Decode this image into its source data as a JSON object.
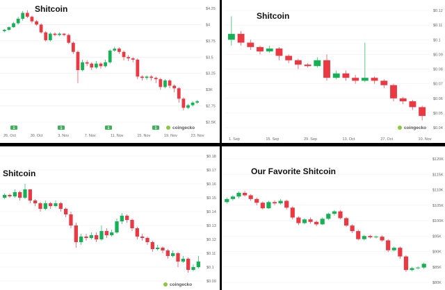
{
  "colors": {
    "up": "#16b157",
    "down": "#ea3943",
    "grid": "#ececec",
    "axis_text": "#666666",
    "watermark_icon": "#8dc63f",
    "event_badge": "#3fb15c"
  },
  "watermark": "coingecko",
  "chart_data": [
    {
      "type": "candlestick",
      "title": "Shitcoin",
      "y_ticks": [
        "$4.25",
        "$4",
        "$3.75",
        "$3.5",
        "$3.25",
        "$3K",
        "$2.75",
        "$2.5K"
      ],
      "ylim": [
        2.5,
        4.25
      ],
      "x_ticks": [
        "26. Oct",
        "30. Oct",
        "3. Nov",
        "7. Nov",
        "11. Nov",
        "15. Nov",
        "19. Nov",
        "23. Nov"
      ],
      "event_badges": [
        "1",
        "1",
        "1",
        "1"
      ],
      "candles": [
        [
          3.9,
          3.92,
          3.88,
          3.93
        ],
        [
          3.92,
          3.96,
          3.9,
          3.97
        ],
        [
          3.96,
          4.02,
          3.95,
          4.04
        ],
        [
          4.02,
          4.09,
          4.0,
          4.12
        ],
        [
          4.09,
          4.18,
          4.06,
          4.21
        ],
        [
          4.18,
          4.12,
          4.1,
          4.22
        ],
        [
          4.12,
          4.05,
          4.02,
          4.14
        ],
        [
          4.05,
          4.0,
          3.98,
          4.07
        ],
        [
          4.0,
          3.88,
          3.86,
          4.02
        ],
        [
          3.88,
          3.76,
          3.74,
          3.9
        ],
        [
          3.76,
          3.86,
          3.74,
          3.88
        ],
        [
          3.86,
          3.84,
          3.82,
          3.88
        ],
        [
          3.84,
          3.86,
          3.82,
          3.88
        ],
        [
          3.86,
          3.84,
          3.82,
          3.87
        ],
        [
          3.84,
          3.72,
          3.7,
          3.86
        ],
        [
          3.72,
          3.58,
          3.55,
          3.74
        ],
        [
          3.58,
          3.3,
          3.1,
          3.6
        ],
        [
          3.3,
          3.42,
          3.28,
          3.46
        ],
        [
          3.42,
          3.4,
          3.36,
          3.45
        ],
        [
          3.4,
          3.34,
          3.3,
          3.42
        ],
        [
          3.34,
          3.4,
          3.32,
          3.44
        ],
        [
          3.4,
          3.36,
          3.32,
          3.42
        ],
        [
          3.36,
          3.42,
          3.34,
          3.46
        ],
        [
          3.42,
          3.6,
          3.4,
          3.62
        ],
        [
          3.6,
          3.63,
          3.58,
          3.66
        ],
        [
          3.63,
          3.58,
          3.55,
          3.65
        ],
        [
          3.58,
          3.5,
          3.45,
          3.6
        ],
        [
          3.5,
          3.48,
          3.44,
          3.53
        ],
        [
          3.48,
          3.46,
          3.42,
          3.5
        ],
        [
          3.46,
          3.2,
          3.16,
          3.48
        ],
        [
          3.2,
          3.18,
          3.14,
          3.22
        ],
        [
          3.18,
          3.2,
          3.15,
          3.22
        ],
        [
          3.2,
          3.18,
          3.14,
          3.22
        ],
        [
          3.18,
          3.16,
          3.1,
          3.2
        ],
        [
          3.16,
          3.04,
          3.0,
          3.18
        ],
        [
          3.04,
          3.14,
          3.02,
          3.16
        ],
        [
          3.14,
          3.06,
          3.02,
          3.16
        ],
        [
          3.06,
          3.02,
          2.96,
          3.08
        ],
        [
          3.02,
          2.86,
          2.8,
          3.04
        ],
        [
          2.86,
          2.72,
          2.68,
          2.88
        ],
        [
          2.72,
          2.76,
          2.7,
          2.78
        ],
        [
          2.76,
          2.8,
          2.74,
          2.82
        ],
        [
          2.8,
          2.82,
          2.78,
          2.84
        ]
      ]
    },
    {
      "type": "candlestick",
      "title": "Shitcoin",
      "y_ticks": [
        "$0.12",
        "$0.11",
        "$0.1",
        "$0.09",
        "$0.08",
        "$0.07",
        "$0.06",
        "$0.05",
        "$0.04"
      ],
      "ylim": [
        0.04,
        0.12
      ],
      "x_ticks": [
        "1. Sep",
        "15. Sep",
        "29. Sep",
        "13. Oct",
        "27. Oct",
        "10. Nov"
      ],
      "candles": [
        [
          0.1,
          0.104,
          0.096,
          0.116
        ],
        [
          0.104,
          0.098,
          0.096,
          0.106
        ],
        [
          0.098,
          0.095,
          0.093,
          0.1
        ],
        [
          0.095,
          0.092,
          0.09,
          0.096
        ],
        [
          0.092,
          0.094,
          0.091,
          0.096
        ],
        [
          0.094,
          0.089,
          0.086,
          0.095
        ],
        [
          0.089,
          0.086,
          0.084,
          0.09
        ],
        [
          0.086,
          0.083,
          0.08,
          0.087
        ],
        [
          0.083,
          0.082,
          0.081,
          0.084
        ],
        [
          0.082,
          0.086,
          0.081,
          0.088
        ],
        [
          0.086,
          0.074,
          0.072,
          0.09
        ],
        [
          0.074,
          0.077,
          0.073,
          0.079
        ],
        [
          0.077,
          0.074,
          0.072,
          0.079
        ],
        [
          0.074,
          0.072,
          0.07,
          0.076
        ],
        [
          0.072,
          0.074,
          0.071,
          0.098
        ],
        [
          0.074,
          0.072,
          0.07,
          0.075
        ],
        [
          0.072,
          0.069,
          0.067,
          0.073
        ],
        [
          0.069,
          0.06,
          0.058,
          0.07
        ],
        [
          0.06,
          0.058,
          0.056,
          0.061
        ],
        [
          0.058,
          0.054,
          0.052,
          0.059
        ],
        [
          0.054,
          0.048,
          0.045,
          0.055
        ]
      ]
    },
    {
      "type": "candlestick",
      "title": "Shitcoin",
      "y_ticks": [
        "$0.18",
        "$0.17",
        "$0.16",
        "$0.15",
        "$0.14",
        "$0.13",
        "$0.12",
        "$0.11",
        "$0.1",
        "$0.09"
      ],
      "ylim": [
        0.09,
        0.18
      ],
      "x_ticks": [],
      "candles": [
        [
          0.15,
          0.152,
          0.149,
          0.153
        ],
        [
          0.152,
          0.151,
          0.15,
          0.153
        ],
        [
          0.151,
          0.154,
          0.15,
          0.156
        ],
        [
          0.154,
          0.15,
          0.148,
          0.155
        ],
        [
          0.15,
          0.156,
          0.149,
          0.16
        ],
        [
          0.156,
          0.148,
          0.146,
          0.156
        ],
        [
          0.148,
          0.146,
          0.144,
          0.149
        ],
        [
          0.146,
          0.142,
          0.14,
          0.147
        ],
        [
          0.142,
          0.146,
          0.141,
          0.148
        ],
        [
          0.146,
          0.144,
          0.142,
          0.147
        ],
        [
          0.144,
          0.146,
          0.143,
          0.148
        ],
        [
          0.146,
          0.142,
          0.14,
          0.147
        ],
        [
          0.142,
          0.138,
          0.136,
          0.143
        ],
        [
          0.138,
          0.13,
          0.128,
          0.14
        ],
        [
          0.13,
          0.118,
          0.114,
          0.132
        ],
        [
          0.118,
          0.122,
          0.116,
          0.124
        ],
        [
          0.122,
          0.121,
          0.119,
          0.124
        ],
        [
          0.121,
          0.123,
          0.12,
          0.125
        ],
        [
          0.123,
          0.12,
          0.118,
          0.125
        ],
        [
          0.12,
          0.126,
          0.119,
          0.13
        ],
        [
          0.126,
          0.123,
          0.121,
          0.128
        ],
        [
          0.123,
          0.125,
          0.122,
          0.127
        ],
        [
          0.125,
          0.133,
          0.124,
          0.135
        ],
        [
          0.133,
          0.137,
          0.131,
          0.139
        ],
        [
          0.137,
          0.134,
          0.132,
          0.138
        ],
        [
          0.134,
          0.128,
          0.126,
          0.135
        ],
        [
          0.128,
          0.122,
          0.12,
          0.129
        ],
        [
          0.122,
          0.121,
          0.119,
          0.124
        ],
        [
          0.121,
          0.118,
          0.116,
          0.122
        ],
        [
          0.118,
          0.113,
          0.111,
          0.119
        ],
        [
          0.113,
          0.114,
          0.112,
          0.116
        ],
        [
          0.114,
          0.112,
          0.11,
          0.115
        ],
        [
          0.112,
          0.108,
          0.106,
          0.113
        ],
        [
          0.108,
          0.11,
          0.107,
          0.112
        ],
        [
          0.11,
          0.104,
          0.1,
          0.111
        ],
        [
          0.104,
          0.106,
          0.103,
          0.108
        ],
        [
          0.106,
          0.098,
          0.096,
          0.107
        ],
        [
          0.098,
          0.1,
          0.097,
          0.102
        ],
        [
          0.1,
          0.104,
          0.099,
          0.108
        ]
      ]
    },
    {
      "type": "candlestick",
      "title": "Our Favorite Shitcoin",
      "y_ticks": [
        "$120K",
        "$115K",
        "$110K",
        "$105K",
        "$100K",
        "$95K",
        "$90K",
        "$85K",
        "$80K"
      ],
      "ylim": [
        80,
        120
      ],
      "x_ticks": [],
      "candles": [
        [
          106.0,
          107.0,
          105.5,
          107.5
        ],
        [
          107.0,
          107.8,
          106.5,
          108.2
        ],
        [
          107.8,
          109.0,
          107.2,
          109.5
        ],
        [
          109.0,
          108.2,
          107.8,
          109.6
        ],
        [
          108.2,
          107.0,
          106.4,
          108.6
        ],
        [
          107.0,
          105.8,
          105.0,
          107.4
        ],
        [
          105.8,
          104.0,
          103.6,
          106.2
        ],
        [
          104.0,
          106.0,
          103.8,
          106.4
        ],
        [
          106.0,
          105.6,
          105.0,
          106.6
        ],
        [
          105.6,
          106.4,
          105.2,
          107.0
        ],
        [
          106.4,
          104.2,
          103.6,
          106.8
        ],
        [
          104.2,
          101.0,
          100.4,
          104.6
        ],
        [
          101.0,
          99.2,
          98.6,
          101.4
        ],
        [
          99.2,
          100.4,
          98.8,
          100.8
        ],
        [
          100.4,
          99.6,
          99.0,
          101.0
        ],
        [
          99.6,
          98.8,
          98.2,
          100.0
        ],
        [
          98.8,
          100.6,
          98.6,
          101.0
        ],
        [
          100.6,
          102.2,
          100.2,
          102.6
        ],
        [
          102.2,
          103.0,
          101.6,
          103.4
        ],
        [
          103.0,
          100.8,
          100.4,
          103.4
        ],
        [
          100.8,
          98.4,
          98.0,
          101.2
        ],
        [
          98.4,
          96.6,
          96.0,
          98.8
        ],
        [
          96.6,
          94.0,
          93.6,
          97.0
        ],
        [
          94.0,
          95.0,
          93.6,
          95.4
        ],
        [
          95.0,
          94.6,
          94.2,
          95.4
        ],
        [
          94.6,
          94.8,
          94.2,
          95.2
        ],
        [
          94.8,
          93.6,
          93.2,
          95.2
        ],
        [
          93.6,
          90.4,
          89.8,
          94.0
        ],
        [
          90.4,
          91.2,
          90.0,
          91.6
        ],
        [
          91.2,
          88.4,
          87.6,
          91.6
        ],
        [
          88.4,
          84.0,
          83.4,
          88.8
        ],
        [
          84.0,
          84.6,
          83.6,
          85.0
        ],
        [
          84.6,
          84.8,
          84.2,
          85.2
        ],
        [
          84.8,
          86.0,
          84.4,
          86.4
        ]
      ]
    }
  ]
}
